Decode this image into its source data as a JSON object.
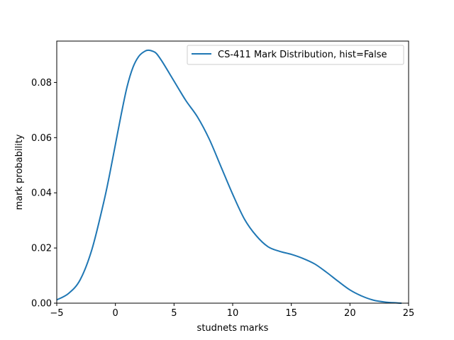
{
  "chart_data": {
    "type": "line",
    "title": "",
    "xlabel": "studnets marks",
    "ylabel": "mark probability",
    "xlim": [
      -5,
      25
    ],
    "ylim": [
      0,
      0.095
    ],
    "xticks": [
      -5,
      0,
      5,
      10,
      15,
      20,
      25
    ],
    "xtick_labels": [
      "−5",
      "0",
      "5",
      "10",
      "15",
      "20",
      "25"
    ],
    "yticks": [
      0,
      0.02,
      0.04,
      0.06,
      0.08
    ],
    "ytick_labels": [
      "0.00",
      "0.02",
      "0.04",
      "0.06",
      "0.08"
    ],
    "grid": false,
    "legend_position": "top-right",
    "series": [
      {
        "name": "CS-411 Mark Distribution, hist=False",
        "color": "#1f77b4",
        "x": [
          -5,
          -4,
          -3,
          -2,
          -1,
          -0.5,
          0,
          0.5,
          1,
          1.5,
          2,
          2.5,
          2.8,
          3.2,
          3.5,
          4,
          5,
          6,
          7,
          8,
          9,
          10,
          11,
          12,
          13,
          14,
          15,
          16,
          17,
          18,
          19,
          20,
          21,
          22,
          23,
          24,
          24.4
        ],
        "y": [
          0.0012,
          0.0035,
          0.0085,
          0.0195,
          0.0365,
          0.0465,
          0.0575,
          0.0685,
          0.0785,
          0.0855,
          0.0895,
          0.0913,
          0.0917,
          0.0913,
          0.0905,
          0.0875,
          0.0805,
          0.0735,
          0.0675,
          0.0595,
          0.0495,
          0.0395,
          0.0305,
          0.0245,
          0.0205,
          0.0188,
          0.0177,
          0.0162,
          0.0142,
          0.0112,
          0.0079,
          0.0048,
          0.0026,
          0.0011,
          0.0004,
          0.0001,
          0.0
        ]
      }
    ]
  }
}
